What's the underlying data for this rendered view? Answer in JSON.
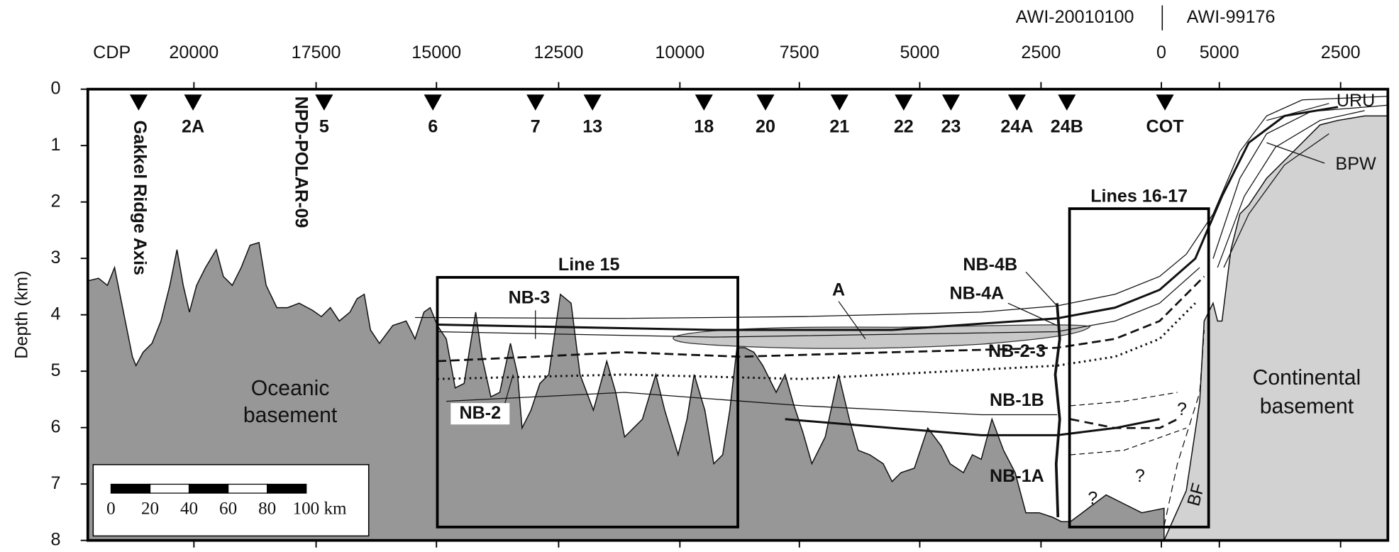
{
  "header": {
    "left_line": "AWI-20010100",
    "right_line": "AWI-99176"
  },
  "top_axis": {
    "title": "CDP",
    "ticks": [
      "20000",
      "17500",
      "15000",
      "12500",
      "10000",
      "7500",
      "5000",
      "2500",
      "0",
      "5000",
      "2500"
    ]
  },
  "left_axis": {
    "title": "Depth (km)",
    "ticks": [
      "0",
      "1",
      "2",
      "3",
      "4",
      "5",
      "6",
      "7",
      "8"
    ]
  },
  "stations": [
    "2A",
    "5",
    "6",
    "7",
    "13",
    "18",
    "20",
    "21",
    "22",
    "23",
    "24A",
    "24B",
    "COT"
  ],
  "wells": [
    "Gakkel Ridge Axis",
    "NPD-POLAR-09"
  ],
  "boxes": [
    "Line 15",
    "Lines 16-17"
  ],
  "labels": [
    "NB-3",
    "NB-2",
    "A",
    "NB-4B",
    "NB-4A",
    "NB-2-3",
    "NB-1B",
    "NB-1A",
    "URU",
    "BPW",
    "?",
    "?",
    "?",
    "BF"
  ],
  "basement": {
    "oceanic": [
      "Oceanic",
      "basement"
    ],
    "continental": [
      "Continental",
      "basement"
    ]
  },
  "scale_bar": {
    "ticks": [
      "0",
      "20",
      "40",
      "60",
      "80"
    ],
    "end": "100 km"
  }
}
